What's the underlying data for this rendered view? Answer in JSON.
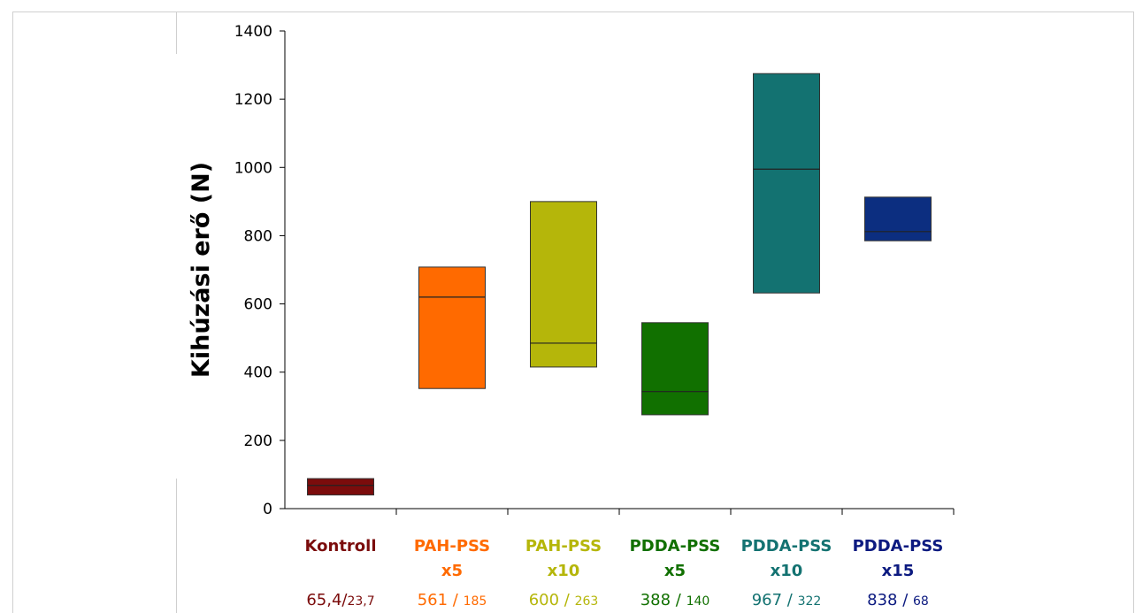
{
  "chart_data": {
    "type": "box",
    "ylabel": "Kihúzási erő (N)",
    "ylim": [
      0,
      1400
    ],
    "yticks": [
      0,
      200,
      400,
      600,
      800,
      1000,
      1200,
      1400
    ],
    "grid": false,
    "categories": [
      {
        "line1": "Kontroll",
        "line2": "",
        "mean": "65,4",
        "sep": "/",
        "sd": "23,7",
        "color": "#7b0c0c",
        "low": 40,
        "median": 68,
        "high": 88
      },
      {
        "line1": "PAH-PSS",
        "line2": "x5",
        "mean": "561",
        "sep": " / ",
        "sd": "185",
        "color": "#ff6a00",
        "low": 352,
        "median": 620,
        "high": 708
      },
      {
        "line1": "PAH-PSS",
        "line2": "x10",
        "mean": "600",
        "sep": " / ",
        "sd": "263",
        "color": "#b5b60a",
        "low": 415,
        "median": 485,
        "high": 900
      },
      {
        "line1": "PDDA-PSS",
        "line2": "x5",
        "mean": "388",
        "sep": " / ",
        "sd": "140",
        "color": "#117000",
        "low": 275,
        "median": 343,
        "high": 545
      },
      {
        "line1": "PDDA-PSS",
        "line2": "x10",
        "mean": "967",
        "sep": " / ",
        "sd": "322",
        "color": "#137271",
        "low": 632,
        "median": 995,
        "high": 1275
      },
      {
        "line1": "PDDA-PSS",
        "line2": "x15",
        "mean": "838",
        "sep": " / ",
        "sd": "68",
        "color": "#0c2e80",
        "low": 785,
        "median": 812,
        "high": 913
      }
    ]
  },
  "colors": {
    "label_colors": [
      "#7b0c0c",
      "#ff6a00",
      "#b5b60a",
      "#117000",
      "#137271",
      "#0c1a80"
    ],
    "axis": "#000000",
    "frame": "#cfcfcf"
  }
}
